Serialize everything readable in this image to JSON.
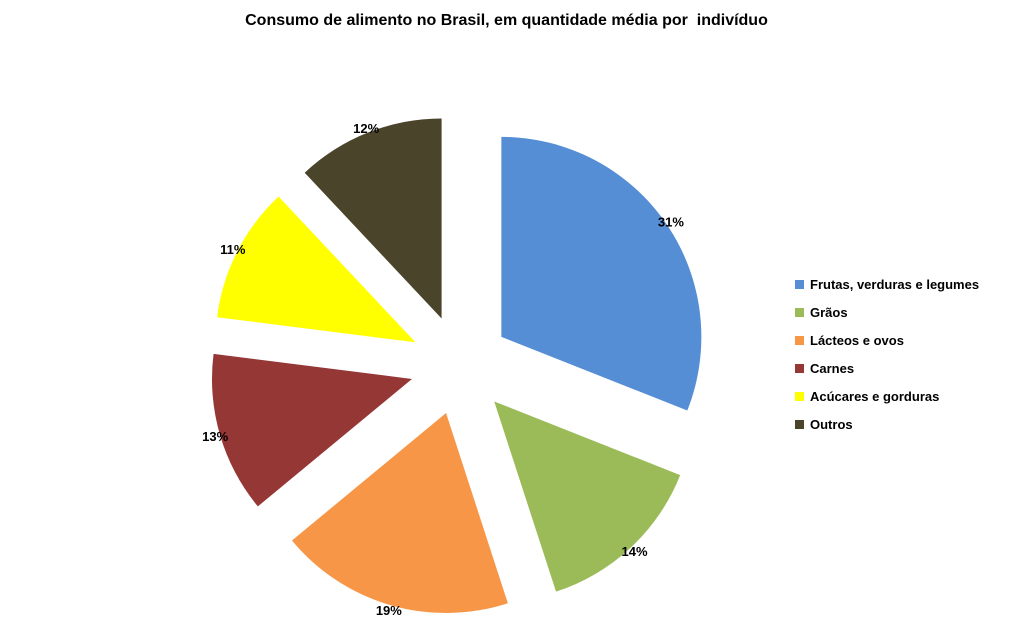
{
  "chart_data": {
    "type": "pie",
    "title": "Consumo de alimento no Brasil, em quantidade média por  indivíduo",
    "categories": [
      "Frutas, verduras e legumes",
      "Grãos",
      "Lácteos e ovos",
      "Carnes",
      "Acúcares e gorduras",
      "Outros"
    ],
    "values": [
      31,
      14,
      19,
      13,
      11,
      12
    ],
    "labels": [
      "31%",
      "14%",
      "19%",
      "13%",
      "11%",
      "12%"
    ],
    "colors": [
      "#558ED5",
      "#9BBB59",
      "#F79646",
      "#953735",
      "#FFFF00",
      "#4A442A"
    ],
    "exploded": true,
    "legend": "right"
  }
}
